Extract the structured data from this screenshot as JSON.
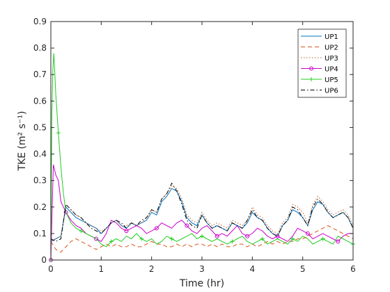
{
  "chart_data": {
    "type": "line",
    "xlabel": "Time (hr)",
    "ylabel": "TKE (m² s⁻¹)",
    "xlim": [
      0,
      6
    ],
    "ylim": [
      0,
      0.9
    ],
    "xticks": [
      "0",
      "1",
      "2",
      "3",
      "4",
      "5",
      "6"
    ],
    "yticks": [
      "0",
      "0.1",
      "0.2",
      "0.3",
      "0.4",
      "0.5",
      "0.6",
      "0.7",
      "0.8",
      "0.9"
    ],
    "grid": false,
    "legend_position": "top-right",
    "series": [
      {
        "name": "UP1",
        "color": "#0072bd",
        "dash": "",
        "marker": "none",
        "x": [
          0,
          0.1,
          0.2,
          0.3,
          0.4,
          0.5,
          0.6,
          0.7,
          0.8,
          0.9,
          1,
          1.1,
          1.2,
          1.3,
          1.4,
          1.5,
          1.6,
          1.7,
          1.8,
          1.9,
          2,
          2.1,
          2.2,
          2.3,
          2.4,
          2.5,
          2.6,
          2.7,
          2.8,
          2.9,
          3,
          3.1,
          3.2,
          3.3,
          3.4,
          3.5,
          3.6,
          3.7,
          3.8,
          3.9,
          4,
          4.1,
          4.2,
          4.3,
          4.4,
          4.5,
          4.6,
          4.7,
          4.8,
          4.9,
          5,
          5.1,
          5.2,
          5.3,
          5.4,
          5.5,
          5.6,
          5.7,
          5.8,
          5.9,
          6
        ],
        "y": [
          0.07,
          0.08,
          0.09,
          0.2,
          0.18,
          0.16,
          0.15,
          0.14,
          0.13,
          0.12,
          0.1,
          0.12,
          0.14,
          0.15,
          0.13,
          0.12,
          0.14,
          0.13,
          0.14,
          0.15,
          0.18,
          0.17,
          0.22,
          0.24,
          0.27,
          0.26,
          0.22,
          0.16,
          0.14,
          0.13,
          0.17,
          0.14,
          0.12,
          0.13,
          0.12,
          0.11,
          0.14,
          0.13,
          0.12,
          0.14,
          0.18,
          0.16,
          0.15,
          0.12,
          0.1,
          0.09,
          0.13,
          0.15,
          0.19,
          0.18,
          0.16,
          0.13,
          0.19,
          0.22,
          0.21,
          0.18,
          0.16,
          0.17,
          0.18,
          0.16,
          0.12
        ]
      },
      {
        "name": "UP2",
        "color": "#d95319",
        "dash": "",
        "marker": "none",
        "x": [
          0,
          0.1,
          0.2,
          0.3,
          0.4,
          0.5,
          0.6,
          0.7,
          0.8,
          0.9,
          1,
          1.1,
          1.2,
          1.3,
          1.4,
          1.5,
          1.6,
          1.7,
          1.8,
          1.9,
          2,
          2.1,
          2.2,
          2.3,
          2.4,
          2.5,
          2.6,
          2.7,
          2.8,
          2.9,
          3,
          3.1,
          3.2,
          3.3,
          3.4,
          3.5,
          3.6,
          3.7,
          3.8,
          3.9,
          4,
          4.1,
          4.2,
          4.3,
          4.4,
          4.5,
          4.6,
          4.7,
          4.8,
          4.9,
          5,
          5.1,
          5.2,
          5.3,
          5.4,
          5.5,
          5.6,
          5.7,
          5.8,
          5.9,
          6
        ],
        "y": [
          0.07,
          0.04,
          0.03,
          0.05,
          0.07,
          0.08,
          0.07,
          0.06,
          0.05,
          0.04,
          0.05,
          0.06,
          0.05,
          0.06,
          0.05,
          0.05,
          0.06,
          0.05,
          0.05,
          0.06,
          0.07,
          0.06,
          0.06,
          0.05,
          0.05,
          0.06,
          0.05,
          0.06,
          0.05,
          0.06,
          0.06,
          0.05,
          0.06,
          0.05,
          0.06,
          0.05,
          0.05,
          0.06,
          0.06,
          0.05,
          0.06,
          0.05,
          0.06,
          0.07,
          0.06,
          0.07,
          0.06,
          0.07,
          0.07,
          0.08,
          0.08,
          0.09,
          0.1,
          0.11,
          0.12,
          0.13,
          0.12,
          0.11,
          0.1,
          0.09,
          0.08
        ]
      },
      {
        "name": "UP3",
        "color": "#b8581f",
        "dash": "",
        "marker": "none",
        "x": [
          0,
          0.1,
          0.2,
          0.3,
          0.4,
          0.5,
          0.6,
          0.7,
          0.8,
          0.9,
          1,
          1.1,
          1.2,
          1.3,
          1.4,
          1.5,
          1.6,
          1.7,
          1.8,
          1.9,
          2,
          2.1,
          2.2,
          2.3,
          2.4,
          2.5,
          2.6,
          2.7,
          2.8,
          2.9,
          3,
          3.1,
          3.2,
          3.3,
          3.4,
          3.5,
          3.6,
          3.7,
          3.8,
          3.9,
          4,
          4.1,
          4.2,
          4.3,
          4.4,
          4.5,
          4.6,
          4.7,
          4.8,
          4.9,
          5,
          5.1,
          5.2,
          5.3,
          5.4,
          5.5,
          5.6,
          5.7,
          5.8,
          5.9,
          6
        ],
        "y": [
          0.07,
          0.08,
          0.09,
          0.21,
          0.19,
          0.17,
          0.16,
          0.14,
          0.13,
          0.12,
          0.11,
          0.12,
          0.14,
          0.15,
          0.13,
          0.13,
          0.14,
          0.13,
          0.14,
          0.16,
          0.19,
          0.18,
          0.23,
          0.25,
          0.28,
          0.27,
          0.23,
          0.17,
          0.15,
          0.14,
          0.18,
          0.15,
          0.13,
          0.14,
          0.13,
          0.12,
          0.15,
          0.14,
          0.13,
          0.15,
          0.2,
          0.17,
          0.16,
          0.13,
          0.11,
          0.1,
          0.14,
          0.16,
          0.21,
          0.2,
          0.18,
          0.14,
          0.21,
          0.24,
          0.22,
          0.19,
          0.17,
          0.18,
          0.19,
          0.17,
          0.13
        ]
      },
      {
        "name": "UP4",
        "color": "#cc00cc",
        "dash": "",
        "marker": "circle",
        "x": [
          0,
          0.05,
          0.1,
          0.15,
          0.2,
          0.25,
          0.3,
          0.4,
          0.5,
          0.6,
          0.7,
          0.8,
          0.9,
          1,
          1.1,
          1.2,
          1.3,
          1.4,
          1.5,
          1.6,
          1.7,
          1.8,
          1.9,
          2,
          2.1,
          2.2,
          2.3,
          2.4,
          2.5,
          2.6,
          2.7,
          2.8,
          2.9,
          3,
          3.1,
          3.2,
          3.3,
          3.4,
          3.5,
          3.6,
          3.7,
          3.8,
          3.9,
          4,
          4.1,
          4.2,
          4.3,
          4.4,
          4.5,
          4.6,
          4.7,
          4.8,
          4.9,
          5,
          5.1,
          5.2,
          5.3,
          5.4,
          5.5,
          5.6,
          5.7,
          5.8,
          5.9,
          6
        ],
        "y": [
          0,
          0.36,
          0.32,
          0.3,
          0.22,
          0.2,
          0.18,
          0.15,
          0.13,
          0.12,
          0.1,
          0.09,
          0.08,
          0.07,
          0.1,
          0.15,
          0.14,
          0.12,
          0.11,
          0.12,
          0.13,
          0.12,
          0.1,
          0.11,
          0.12,
          0.14,
          0.13,
          0.12,
          0.14,
          0.15,
          0.13,
          0.11,
          0.1,
          0.12,
          0.13,
          0.11,
          0.09,
          0.1,
          0.09,
          0.11,
          0.13,
          0.1,
          0.09,
          0.1,
          0.12,
          0.11,
          0.09,
          0.08,
          0.09,
          0.08,
          0.07,
          0.09,
          0.12,
          0.11,
          0.1,
          0.08,
          0.09,
          0.1,
          0.09,
          0.08,
          0.07,
          0.09,
          0.1,
          0.1
        ]
      },
      {
        "name": "UP5",
        "color": "#22cc22",
        "dash": "",
        "marker": "plus",
        "x": [
          0,
          0.02,
          0.04,
          0.06,
          0.08,
          0.1,
          0.15,
          0.2,
          0.25,
          0.3,
          0.4,
          0.5,
          0.6,
          0.7,
          0.8,
          0.9,
          1,
          1.1,
          1.2,
          1.3,
          1.4,
          1.5,
          1.6,
          1.7,
          1.8,
          1.9,
          2,
          2.1,
          2.2,
          2.3,
          2.4,
          2.5,
          2.6,
          2.7,
          2.8,
          2.9,
          3,
          3.1,
          3.2,
          3.3,
          3.4,
          3.5,
          3.6,
          3.7,
          3.8,
          3.9,
          4,
          4.1,
          4.2,
          4.3,
          4.4,
          4.5,
          4.6,
          4.7,
          4.8,
          4.9,
          5,
          5.1,
          5.2,
          5.3,
          5.4,
          5.5,
          5.6,
          5.7,
          5.8,
          5.9,
          6
        ],
        "y": [
          0,
          0.55,
          0.72,
          0.78,
          0.7,
          0.62,
          0.48,
          0.35,
          0.25,
          0.18,
          0.14,
          0.12,
          0.11,
          0.1,
          0.09,
          0.08,
          0.06,
          0.05,
          0.07,
          0.08,
          0.07,
          0.09,
          0.08,
          0.1,
          0.08,
          0.07,
          0.08,
          0.06,
          0.07,
          0.09,
          0.08,
          0.07,
          0.08,
          0.09,
          0.1,
          0.08,
          0.09,
          0.08,
          0.07,
          0.08,
          0.07,
          0.06,
          0.07,
          0.08,
          0.09,
          0.07,
          0.06,
          0.07,
          0.08,
          0.06,
          0.07,
          0.08,
          0.07,
          0.06,
          0.08,
          0.07,
          0.09,
          0.08,
          0.06,
          0.07,
          0.08,
          0.07,
          0.06,
          0.09,
          0.08,
          0.07,
          0.06
        ]
      },
      {
        "name": "UP6",
        "color": "#000000",
        "dash": "",
        "marker": "none",
        "x": [
          0,
          0.1,
          0.2,
          0.3,
          0.4,
          0.5,
          0.6,
          0.7,
          0.8,
          0.9,
          1,
          1.1,
          1.2,
          1.3,
          1.4,
          1.5,
          1.6,
          1.7,
          1.8,
          1.9,
          2,
          2.1,
          2.2,
          2.3,
          2.4,
          2.5,
          2.6,
          2.7,
          2.8,
          2.9,
          3,
          3.1,
          3.2,
          3.3,
          3.4,
          3.5,
          3.6,
          3.7,
          3.8,
          3.9,
          4,
          4.1,
          4.2,
          4.3,
          4.4,
          4.5,
          4.6,
          4.7,
          4.8,
          4.9,
          5,
          5.1,
          5.2,
          5.3,
          5.4,
          5.5,
          5.6,
          5.7,
          5.8,
          5.9,
          6
        ],
        "y": [
          0.08,
          0.07,
          0.08,
          0.21,
          0.19,
          0.17,
          0.16,
          0.14,
          0.12,
          0.11,
          0.1,
          0.12,
          0.14,
          0.15,
          0.14,
          0.12,
          0.14,
          0.13,
          0.15,
          0.16,
          0.19,
          0.18,
          0.23,
          0.25,
          0.29,
          0.26,
          0.21,
          0.15,
          0.13,
          0.12,
          0.17,
          0.14,
          0.12,
          0.13,
          0.12,
          0.11,
          0.14,
          0.13,
          0.12,
          0.15,
          0.19,
          0.16,
          0.15,
          0.12,
          0.1,
          0.09,
          0.13,
          0.15,
          0.2,
          0.19,
          0.16,
          0.13,
          0.2,
          0.23,
          0.21,
          0.18,
          0.16,
          0.17,
          0.18,
          0.16,
          0.12
        ]
      }
    ]
  }
}
